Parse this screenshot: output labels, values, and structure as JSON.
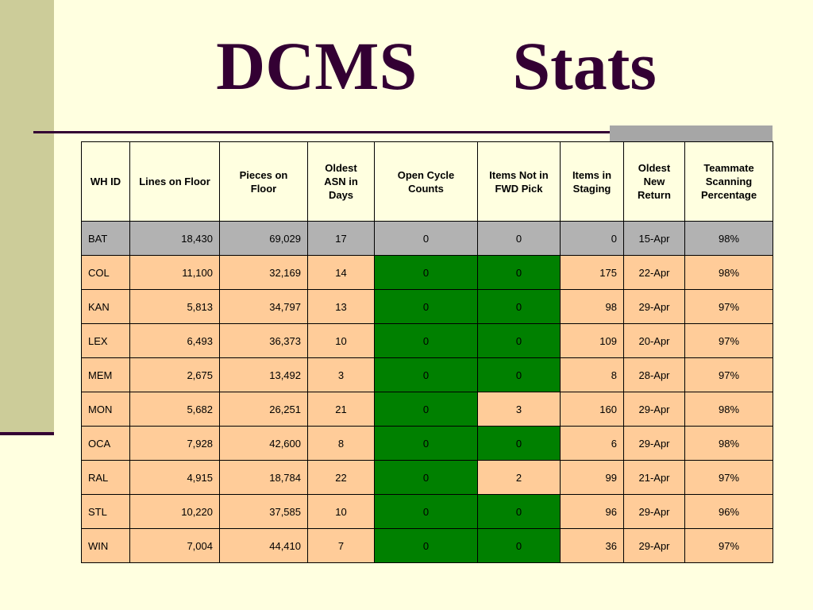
{
  "title": {
    "word1": "DCMS",
    "word2": "Stats"
  },
  "colors": {
    "background": "#FFFFE0",
    "title": "#330033",
    "row": "#FFCC99",
    "highlight_row": "#B2B2B2",
    "green_cell": "#008000",
    "sidebar": "#CCCC99"
  },
  "table": {
    "headers": [
      "WH ID",
      "Lines on Floor",
      "Pieces on Floor",
      "Oldest ASN in Days",
      "Open Cycle Counts",
      "Items Not in FWD Pick",
      "Items in Staging",
      "Oldest New Return",
      "Teammate Scanning Percentage"
    ],
    "rows": [
      {
        "cells": [
          "BAT",
          "18,430",
          "69,029",
          "17",
          "0",
          "0",
          "0",
          "15-Apr",
          "98%"
        ],
        "gray": true,
        "green": []
      },
      {
        "cells": [
          "COL",
          "11,100",
          "32,169",
          "14",
          "0",
          "0",
          "175",
          "22-Apr",
          "98%"
        ],
        "gray": false,
        "green": [
          4,
          5
        ]
      },
      {
        "cells": [
          "KAN",
          "5,813",
          "34,797",
          "13",
          "0",
          "0",
          "98",
          "29-Apr",
          "97%"
        ],
        "gray": false,
        "green": [
          4,
          5
        ]
      },
      {
        "cells": [
          "LEX",
          "6,493",
          "36,373",
          "10",
          "0",
          "0",
          "109",
          "20-Apr",
          "97%"
        ],
        "gray": false,
        "green": [
          4,
          5
        ]
      },
      {
        "cells": [
          "MEM",
          "2,675",
          "13,492",
          "3",
          "0",
          "0",
          "8",
          "28-Apr",
          "97%"
        ],
        "gray": false,
        "green": [
          4,
          5
        ]
      },
      {
        "cells": [
          "MON",
          "5,682",
          "26,251",
          "21",
          "0",
          "3",
          "160",
          "29-Apr",
          "98%"
        ],
        "gray": false,
        "green": [
          4
        ]
      },
      {
        "cells": [
          "OCA",
          "7,928",
          "42,600",
          "8",
          "0",
          "0",
          "6",
          "29-Apr",
          "98%"
        ],
        "gray": false,
        "green": [
          4,
          5
        ]
      },
      {
        "cells": [
          "RAL",
          "4,915",
          "18,784",
          "22",
          "0",
          "2",
          "99",
          "21-Apr",
          "97%"
        ],
        "gray": false,
        "green": [
          4
        ]
      },
      {
        "cells": [
          "STL",
          "10,220",
          "37,585",
          "10",
          "0",
          "0",
          "96",
          "29-Apr",
          "96%"
        ],
        "gray": false,
        "green": [
          4,
          5
        ]
      },
      {
        "cells": [
          "WIN",
          "7,004",
          "44,410",
          "7",
          "0",
          "0",
          "36",
          "29-Apr",
          "97%"
        ],
        "gray": false,
        "green": [
          4,
          5
        ]
      }
    ]
  }
}
